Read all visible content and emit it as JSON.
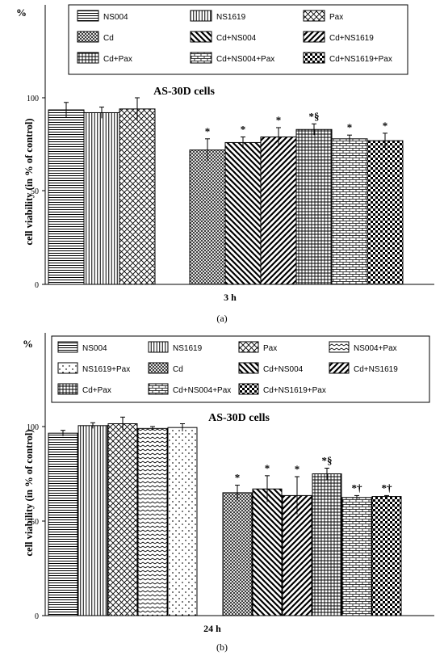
{
  "chart_data": [
    {
      "type": "bar",
      "panel_label": "(a)",
      "title": "AS-30D cells",
      "unit": "%",
      "ylabel": "cell viability (in % of control)",
      "xlabel": "3 h",
      "ylim": [
        0,
        150
      ],
      "yticks": [
        0,
        50,
        100
      ],
      "legend": [
        "NS004",
        "NS1619",
        "Pax",
        "Cd",
        "Cd+NS004",
        "Cd+NS1619",
        "Cd+Pax",
        "Cd+NS004+Pax",
        "Cd+NS1619+Pax"
      ],
      "groups": [
        {
          "bars": [
            {
              "series": "NS004",
              "pattern": "hlines",
              "value": 93.5,
              "error": 4,
              "marker": ""
            },
            {
              "series": "NS1619",
              "pattern": "vlines",
              "value": 92,
              "error": 3,
              "marker": ""
            },
            {
              "series": "Pax",
              "pattern": "diamond",
              "value": 94,
              "error": 6,
              "marker": ""
            }
          ]
        },
        {
          "bars": [
            {
              "series": "Cd",
              "pattern": "dots",
              "value": 72,
              "error": 6,
              "marker": "*"
            },
            {
              "series": "Cd+NS004",
              "pattern": "backdiag",
              "value": 76,
              "error": 3,
              "marker": "*"
            },
            {
              "series": "Cd+NS1619",
              "pattern": "fwddiag",
              "value": 79,
              "error": 5,
              "marker": "*"
            },
            {
              "series": "Cd+Pax",
              "pattern": "grid",
              "value": 83,
              "error": 3,
              "marker": "*§"
            },
            {
              "series": "Cd+NS004+Pax",
              "pattern": "brick",
              "value": 78,
              "error": 2,
              "marker": "*"
            },
            {
              "series": "Cd+NS1619+Pax",
              "pattern": "checker",
              "value": 77,
              "error": 4,
              "marker": "*"
            }
          ]
        }
      ]
    },
    {
      "type": "bar",
      "panel_label": "(b)",
      "title": "AS-30D cells",
      "unit": "%",
      "ylabel": "cell viability (in % of control)",
      "xlabel": "24 h",
      "ylim": [
        0,
        150
      ],
      "yticks": [
        0,
        50,
        100
      ],
      "legend": [
        "NS004",
        "NS1619",
        "Pax",
        "NS004+Pax",
        "NS1619+Pax",
        "Cd",
        "Cd+NS004",
        "Cd+NS1619",
        "Cd+Pax",
        "Cd+NS004+Pax",
        "Cd+NS1619+Pax"
      ],
      "groups": [
        {
          "bars": [
            {
              "series": "NS004",
              "pattern": "hlines",
              "value": 96.5,
              "error": 1.5,
              "marker": ""
            },
            {
              "series": "NS1619",
              "pattern": "vlines",
              "value": 100.5,
              "error": 1.5,
              "marker": ""
            },
            {
              "series": "Pax",
              "pattern": "diamond",
              "value": 101.5,
              "error": 3.5,
              "marker": ""
            },
            {
              "series": "NS004+Pax",
              "pattern": "zigzag",
              "value": 99,
              "error": 1,
              "marker": ""
            },
            {
              "series": "NS1619+Pax",
              "pattern": "sparse",
              "value": 99.5,
              "error": 2,
              "marker": ""
            }
          ]
        },
        {
          "bars": [
            {
              "series": "Cd",
              "pattern": "dots",
              "value": 65,
              "error": 4,
              "marker": "*"
            },
            {
              "series": "Cd+NS004",
              "pattern": "backdiag",
              "value": 67,
              "error": 7,
              "marker": "*"
            },
            {
              "series": "Cd+NS1619",
              "pattern": "fwddiag",
              "value": 63.5,
              "error": 10,
              "marker": "*"
            },
            {
              "series": "Cd+Pax",
              "pattern": "grid",
              "value": 75,
              "error": 3,
              "marker": "*§"
            },
            {
              "series": "Cd+NS004+Pax",
              "pattern": "brick",
              "value": 62.5,
              "error": 1,
              "marker": "*†"
            },
            {
              "series": "Cd+NS1619+Pax",
              "pattern": "checker",
              "value": 63,
              "error": 0.5,
              "marker": "*†"
            }
          ]
        }
      ]
    }
  ]
}
